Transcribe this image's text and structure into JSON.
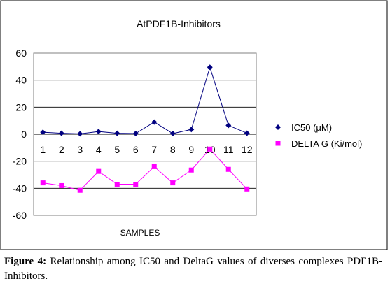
{
  "chart_data": {
    "type": "line",
    "title": "AtPDF1B-Inhibitors",
    "xlabel": "SAMPLES",
    "ylabel": "",
    "categories": [
      "1",
      "2",
      "3",
      "4",
      "5",
      "6",
      "7",
      "8",
      "9",
      "10",
      "11",
      "12"
    ],
    "ylim": [
      -60,
      60
    ],
    "yticks": [
      60,
      40,
      20,
      0,
      -20,
      -40,
      -60
    ],
    "grid": true,
    "legend_position": "right",
    "series": [
      {
        "name": "IC50 (μM)",
        "color": "#000080",
        "marker": "diamond",
        "values": [
          1.5,
          0.7,
          0.3,
          2.0,
          0.7,
          0.5,
          9.0,
          0.5,
          3.5,
          49.5,
          6.5,
          0.8
        ]
      },
      {
        "name": "DELTA G (Ki/mol)",
        "color": "#FF00FF",
        "marker": "square",
        "values": [
          -36,
          -38,
          -41.5,
          -27.5,
          -37,
          -37,
          -24,
          -36,
          -26.5,
          -11,
          -26,
          -40.5
        ]
      }
    ]
  },
  "caption": {
    "label": "Figure 4:",
    "text": " Relationship among IC50 and DeltaG values of diverses complexes PDF1B-Inhibitors."
  }
}
